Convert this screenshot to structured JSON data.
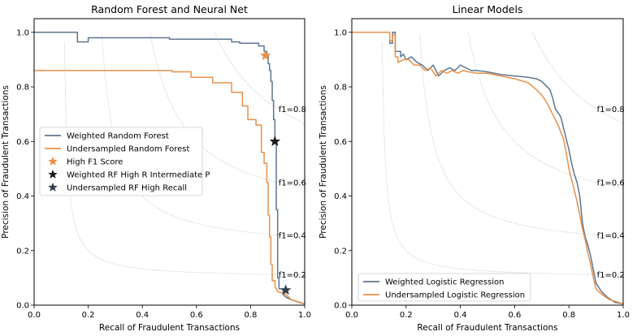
{
  "chart_data": [
    {
      "type": "line",
      "title": "Random Forest and Neural Net",
      "xlabel": "Recall of Fraudulent Transactions",
      "ylabel": "Precision of Fraudulent Transactions",
      "xlim": [
        0,
        1
      ],
      "ylim": [
        0,
        1.05
      ],
      "xticks": [
        "0.0",
        "0.2",
        "0.4",
        "0.6",
        "0.8",
        "1.0"
      ],
      "yticks": [
        "0.0",
        "0.2",
        "0.4",
        "0.6",
        "0.8",
        "1.0"
      ],
      "iso_f1": [
        {
          "f": 0.2,
          "label": "f1=0.2"
        },
        {
          "f": 0.4,
          "label": "f1=0.4"
        },
        {
          "f": 0.6,
          "label": "f1=0.6"
        },
        {
          "f": 0.8,
          "label": "f1=0.8"
        }
      ],
      "legend_position": "center-left",
      "series": [
        {
          "name": "Weighted Random Forest",
          "color": "#5e768f",
          "points": [
            [
              0.0,
              1.0
            ],
            [
              0.16,
              1.0
            ],
            [
              0.16,
              0.965
            ],
            [
              0.2,
              0.965
            ],
            [
              0.2,
              0.98
            ],
            [
              0.5,
              0.98
            ],
            [
              0.5,
              0.975
            ],
            [
              0.73,
              0.975
            ],
            [
              0.73,
              0.965
            ],
            [
              0.76,
              0.965
            ],
            [
              0.76,
              0.96
            ],
            [
              0.83,
              0.96
            ],
            [
              0.83,
              0.95
            ],
            [
              0.85,
              0.95
            ],
            [
              0.85,
              0.93
            ],
            [
              0.86,
              0.93
            ],
            [
              0.86,
              0.915
            ],
            [
              0.865,
              0.915
            ],
            [
              0.865,
              0.885
            ],
            [
              0.87,
              0.885
            ],
            [
              0.87,
              0.86
            ],
            [
              0.875,
              0.86
            ],
            [
              0.875,
              0.82
            ],
            [
              0.88,
              0.82
            ],
            [
              0.88,
              0.75
            ],
            [
              0.885,
              0.75
            ],
            [
              0.885,
              0.68
            ],
            [
              0.89,
              0.68
            ],
            [
              0.89,
              0.6
            ],
            [
              0.895,
              0.6
            ],
            [
              0.895,
              0.35
            ],
            [
              0.9,
              0.35
            ],
            [
              0.9,
              0.1
            ],
            [
              0.905,
              0.1
            ],
            [
              0.905,
              0.06
            ],
            [
              0.92,
              0.06
            ],
            [
              0.92,
              0.04
            ],
            [
              0.93,
              0.03
            ],
            [
              0.95,
              0.02
            ],
            [
              0.98,
              0.01
            ],
            [
              1.0,
              0.005
            ]
          ]
        },
        {
          "name": "Undersampled Random Forest",
          "color": "#e8904a",
          "points": [
            [
              0.0,
              0.86
            ],
            [
              0.51,
              0.86
            ],
            [
              0.51,
              0.855
            ],
            [
              0.58,
              0.855
            ],
            [
              0.58,
              0.835
            ],
            [
              0.66,
              0.835
            ],
            [
              0.66,
              0.815
            ],
            [
              0.73,
              0.815
            ],
            [
              0.73,
              0.78
            ],
            [
              0.77,
              0.78
            ],
            [
              0.77,
              0.73
            ],
            [
              0.79,
              0.73
            ],
            [
              0.79,
              0.68
            ],
            [
              0.82,
              0.68
            ],
            [
              0.82,
              0.66
            ],
            [
              0.84,
              0.66
            ],
            [
              0.84,
              0.56
            ],
            [
              0.85,
              0.56
            ],
            [
              0.85,
              0.52
            ],
            [
              0.86,
              0.52
            ],
            [
              0.86,
              0.45
            ],
            [
              0.865,
              0.45
            ],
            [
              0.865,
              0.33
            ],
            [
              0.87,
              0.33
            ],
            [
              0.87,
              0.25
            ],
            [
              0.875,
              0.25
            ],
            [
              0.875,
              0.15
            ],
            [
              0.88,
              0.15
            ],
            [
              0.88,
              0.09
            ],
            [
              0.89,
              0.09
            ],
            [
              0.89,
              0.07
            ],
            [
              0.9,
              0.05
            ],
            [
              0.93,
              0.04
            ],
            [
              0.95,
              0.02
            ],
            [
              1.0,
              0.005
            ]
          ]
        }
      ],
      "markers": [
        {
          "name": "High F1 Score",
          "symbol": "star",
          "color": "#e8904a",
          "x": 0.855,
          "y": 0.915
        },
        {
          "name": "Weighted RF High R Intermediate P",
          "symbol": "star",
          "color": "#1a1a1a",
          "x": 0.89,
          "y": 0.6
        },
        {
          "name": "Undersampled RF High Recall",
          "symbol": "star",
          "color": "#2f3f4f",
          "x": 0.93,
          "y": 0.055
        }
      ]
    },
    {
      "type": "line",
      "title": "Linear Models",
      "xlabel": "Recall of Fraudulent Transactions",
      "ylabel": "Precision of Fraudulent Transactions",
      "xlim": [
        0,
        1
      ],
      "ylim": [
        0,
        1.05
      ],
      "xticks": [
        "0.0",
        "0.2",
        "0.4",
        "0.6",
        "0.8",
        "1.0"
      ],
      "yticks": [
        "0.0",
        "0.2",
        "0.4",
        "0.6",
        "0.8",
        "1.0"
      ],
      "iso_f1": [
        {
          "f": 0.2,
          "label": "f1=0.2"
        },
        {
          "f": 0.4,
          "label": "f1=0.4"
        },
        {
          "f": 0.6,
          "label": "f1=0.6"
        },
        {
          "f": 0.8,
          "label": "f1=0.8"
        }
      ],
      "legend_position": "lower-left",
      "series": [
        {
          "name": "Weighted Logistic Regression",
          "color": "#5e768f",
          "points": [
            [
              0.0,
              1.0
            ],
            [
              0.14,
              1.0
            ],
            [
              0.14,
              0.96
            ],
            [
              0.15,
              0.96
            ],
            [
              0.15,
              1.0
            ],
            [
              0.16,
              1.0
            ],
            [
              0.16,
              0.93
            ],
            [
              0.18,
              0.93
            ],
            [
              0.18,
              0.91
            ],
            [
              0.19,
              0.92
            ],
            [
              0.2,
              0.9
            ],
            [
              0.22,
              0.91
            ],
            [
              0.24,
              0.89
            ],
            [
              0.26,
              0.88
            ],
            [
              0.28,
              0.86
            ],
            [
              0.3,
              0.88
            ],
            [
              0.32,
              0.84
            ],
            [
              0.34,
              0.86
            ],
            [
              0.36,
              0.87
            ],
            [
              0.38,
              0.86
            ],
            [
              0.4,
              0.88
            ],
            [
              0.42,
              0.87
            ],
            [
              0.44,
              0.86
            ],
            [
              0.46,
              0.86
            ],
            [
              0.5,
              0.855
            ],
            [
              0.55,
              0.845
            ],
            [
              0.6,
              0.84
            ],
            [
              0.65,
              0.835
            ],
            [
              0.68,
              0.83
            ],
            [
              0.7,
              0.82
            ],
            [
              0.72,
              0.8
            ],
            [
              0.73,
              0.79
            ],
            [
              0.74,
              0.76
            ],
            [
              0.75,
              0.72
            ],
            [
              0.77,
              0.69
            ],
            [
              0.78,
              0.65
            ],
            [
              0.79,
              0.61
            ],
            [
              0.8,
              0.57
            ],
            [
              0.81,
              0.52
            ],
            [
              0.82,
              0.48
            ],
            [
              0.83,
              0.45
            ],
            [
              0.84,
              0.4
            ],
            [
              0.845,
              0.35
            ],
            [
              0.85,
              0.3
            ],
            [
              0.86,
              0.25
            ],
            [
              0.87,
              0.22
            ],
            [
              0.88,
              0.18
            ],
            [
              0.89,
              0.13
            ],
            [
              0.9,
              0.08
            ],
            [
              0.92,
              0.05
            ],
            [
              0.94,
              0.03
            ],
            [
              0.97,
              0.01
            ],
            [
              1.0,
              0.005
            ]
          ]
        },
        {
          "name": "Undersampled Logistic Regression",
          "color": "#e8904a",
          "points": [
            [
              0.0,
              1.0
            ],
            [
              0.14,
              1.0
            ],
            [
              0.14,
              0.97
            ],
            [
              0.15,
              0.97
            ],
            [
              0.15,
              0.99
            ],
            [
              0.16,
              0.99
            ],
            [
              0.16,
              0.91
            ],
            [
              0.17,
              0.91
            ],
            [
              0.17,
              0.89
            ],
            [
              0.19,
              0.9
            ],
            [
              0.21,
              0.9
            ],
            [
              0.23,
              0.88
            ],
            [
              0.25,
              0.88
            ],
            [
              0.27,
              0.86
            ],
            [
              0.29,
              0.87
            ],
            [
              0.31,
              0.84
            ],
            [
              0.33,
              0.86
            ],
            [
              0.35,
              0.85
            ],
            [
              0.37,
              0.86
            ],
            [
              0.39,
              0.85
            ],
            [
              0.41,
              0.86
            ],
            [
              0.43,
              0.855
            ],
            [
              0.46,
              0.85
            ],
            [
              0.5,
              0.85
            ],
            [
              0.55,
              0.84
            ],
            [
              0.6,
              0.83
            ],
            [
              0.65,
              0.815
            ],
            [
              0.68,
              0.79
            ],
            [
              0.7,
              0.77
            ],
            [
              0.72,
              0.74
            ],
            [
              0.74,
              0.7
            ],
            [
              0.76,
              0.66
            ],
            [
              0.78,
              0.61
            ],
            [
              0.79,
              0.56
            ],
            [
              0.8,
              0.5
            ],
            [
              0.81,
              0.46
            ],
            [
              0.82,
              0.42
            ],
            [
              0.83,
              0.38
            ],
            [
              0.84,
              0.33
            ],
            [
              0.85,
              0.28
            ],
            [
              0.86,
              0.24
            ],
            [
              0.87,
              0.19
            ],
            [
              0.88,
              0.15
            ],
            [
              0.89,
              0.1
            ],
            [
              0.9,
              0.06
            ],
            [
              0.92,
              0.04
            ],
            [
              0.95,
              0.02
            ],
            [
              1.0,
              0.005
            ]
          ]
        }
      ],
      "markers": []
    }
  ]
}
